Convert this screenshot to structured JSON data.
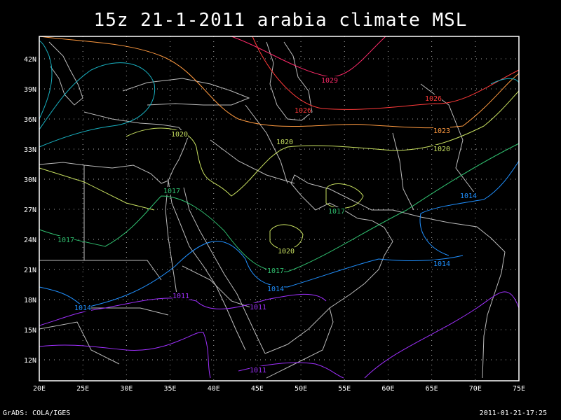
{
  "title": "15z 21-1-2011 arabia climate MSL",
  "footer": {
    "left": "GrADS: COLA/IGES",
    "right": "2011-01-21-17:25"
  },
  "axes": {
    "lat_ticks": [
      "42N",
      "39N",
      "36N",
      "33N",
      "30N",
      "27N",
      "24N",
      "21N",
      "18N",
      "15N",
      "12N"
    ],
    "lon_ticks": [
      "20E",
      "25E",
      "30E",
      "35E",
      "40E",
      "45E",
      "50E",
      "55E",
      "60E",
      "65E",
      "70E",
      "75E"
    ]
  },
  "colors": {
    "background": "#000000",
    "frame": "#ffffff",
    "grid": "#aaaaaa",
    "coast": "#bbbbbb",
    "c1029": "#ff2a6a",
    "c1026": "#ff3a3a",
    "c1023": "#ff9a40",
    "c1020": "#c8e060",
    "c1017": "#30c070",
    "c1014": "#2090ff",
    "c1011": "#a030ff",
    "teal": "#18b0c0"
  },
  "contour_labels": [
    {
      "text": "1029",
      "color": "c1029"
    },
    {
      "text": "1026",
      "color": "c1026"
    },
    {
      "text": "1026",
      "color": "c1026"
    },
    {
      "text": "1023",
      "color": "c1023"
    },
    {
      "text": "1020",
      "color": "c1020"
    },
    {
      "text": "1020",
      "color": "c1020"
    },
    {
      "text": "1020",
      "color": "c1020"
    },
    {
      "text": "1020",
      "color": "c1020"
    },
    {
      "text": "1017",
      "color": "c1017"
    },
    {
      "text": "1017",
      "color": "c1017"
    },
    {
      "text": "1017",
      "color": "c1017"
    },
    {
      "text": "1017",
      "color": "c1017"
    },
    {
      "text": "1014",
      "color": "c1014"
    },
    {
      "text": "1014",
      "color": "c1014"
    },
    {
      "text": "1014",
      "color": "c1014"
    },
    {
      "text": "1014",
      "color": "c1014"
    },
    {
      "text": "1011",
      "color": "c1011"
    },
    {
      "text": "1011",
      "color": "c1011"
    },
    {
      "text": "1011",
      "color": "c1011"
    }
  ]
}
